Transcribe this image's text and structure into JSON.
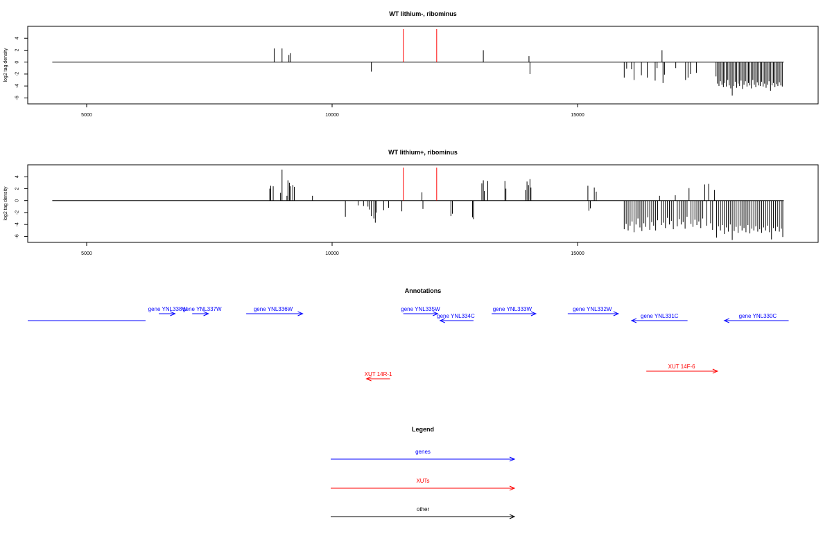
{
  "colors": {
    "gene": "#0000ff",
    "xut": "#ff0000",
    "other": "#000000",
    "density_bar": "#000000",
    "marker": "#ff0000",
    "axis": "#000000"
  },
  "chart_data": [
    {
      "type": "bar",
      "title": "WT lithium-, ribominus",
      "ylabel": "log2 tag density",
      "xlim": [
        3800,
        19900
      ],
      "ylim": [
        -7,
        6
      ],
      "xticks": [
        5000,
        10000,
        15000
      ],
      "yticks": [
        4,
        2,
        0,
        -2,
        -4,
        -6
      ],
      "baseline": {
        "x_start": 4300,
        "x_end": 19200
      },
      "markers": [
        11450,
        12130
      ],
      "bars": [
        {
          "x": 8820,
          "y": 2.3
        },
        {
          "x": 8980,
          "y": 2.3
        },
        {
          "x": 9120,
          "y": 1.2
        },
        {
          "x": 9150,
          "y": 1.5
        },
        {
          "x": 10800,
          "y": -1.6
        },
        {
          "x": 13080,
          "y": 2.0
        },
        {
          "x": 14010,
          "y": 1.0
        },
        {
          "x": 14030,
          "y": -2.0
        },
        {
          "x": 15950,
          "y": -2.6
        },
        {
          "x": 16000,
          "y": -1.1
        },
        {
          "x": 16100,
          "y": -1.2
        },
        {
          "x": 16150,
          "y": -3.0
        },
        {
          "x": 16300,
          "y": -2.2
        },
        {
          "x": 16420,
          "y": -2.6
        },
        {
          "x": 16580,
          "y": -3.1
        },
        {
          "x": 16620,
          "y": -1.0
        },
        {
          "x": 16720,
          "y": 2.0
        },
        {
          "x": 16740,
          "y": -3.5
        },
        {
          "x": 16770,
          "y": -2.1
        },
        {
          "x": 17000,
          "y": -1.0
        },
        {
          "x": 17200,
          "y": -3.0
        },
        {
          "x": 17250,
          "y": -2.6
        },
        {
          "x": 17300,
          "y": -2.0
        },
        {
          "x": 17420,
          "y": -1.8
        },
        {
          "x": 17820,
          "y": -2.4
        },
        {
          "x": 17850,
          "y": -3.6
        },
        {
          "x": 17880,
          "y": -4.0
        },
        {
          "x": 17910,
          "y": -3.2
        },
        {
          "x": 17940,
          "y": -3.8
        },
        {
          "x": 17970,
          "y": -4.2
        },
        {
          "x": 18000,
          "y": -3.5
        },
        {
          "x": 18030,
          "y": -4.1
        },
        {
          "x": 18060,
          "y": -3.0
        },
        {
          "x": 18090,
          "y": -3.9
        },
        {
          "x": 18120,
          "y": -4.4
        },
        {
          "x": 18150,
          "y": -5.6
        },
        {
          "x": 18180,
          "y": -4.0
        },
        {
          "x": 18210,
          "y": -3.3
        },
        {
          "x": 18240,
          "y": -4.3
        },
        {
          "x": 18270,
          "y": -3.6
        },
        {
          "x": 18300,
          "y": -4.0
        },
        {
          "x": 18330,
          "y": -3.1
        },
        {
          "x": 18360,
          "y": -4.5
        },
        {
          "x": 18390,
          "y": -3.8
        },
        {
          "x": 18420,
          "y": -3.2
        },
        {
          "x": 18450,
          "y": -4.1
        },
        {
          "x": 18480,
          "y": -3.5
        },
        {
          "x": 18510,
          "y": -3.9
        },
        {
          "x": 18540,
          "y": -4.4
        },
        {
          "x": 18570,
          "y": -3.0
        },
        {
          "x": 18600,
          "y": -3.8
        },
        {
          "x": 18630,
          "y": -4.2
        },
        {
          "x": 18660,
          "y": -3.4
        },
        {
          "x": 18690,
          "y": -3.9
        },
        {
          "x": 18720,
          "y": -4.0
        },
        {
          "x": 18750,
          "y": -3.3
        },
        {
          "x": 18780,
          "y": -4.1
        },
        {
          "x": 18810,
          "y": -3.6
        },
        {
          "x": 18840,
          "y": -4.3
        },
        {
          "x": 18870,
          "y": -3.8
        },
        {
          "x": 18900,
          "y": -3.2
        },
        {
          "x": 18930,
          "y": -4.8
        },
        {
          "x": 18960,
          "y": -3.9
        },
        {
          "x": 18990,
          "y": -3.5
        },
        {
          "x": 19020,
          "y": -4.2
        },
        {
          "x": 19050,
          "y": -3.7
        },
        {
          "x": 19080,
          "y": -4.0
        },
        {
          "x": 19110,
          "y": -3.4
        },
        {
          "x": 19140,
          "y": -3.9
        },
        {
          "x": 19170,
          "y": -4.1
        }
      ]
    },
    {
      "type": "bar",
      "title": "WT lithium+, ribominus",
      "ylabel": "log2 tag density",
      "xlim": [
        3800,
        19900
      ],
      "ylim": [
        -7,
        6
      ],
      "xticks": [
        5000,
        10000,
        15000
      ],
      "yticks": [
        4,
        2,
        0,
        -2,
        -4,
        -6
      ],
      "baseline": {
        "x_start": 4300,
        "x_end": 19200
      },
      "markers": [
        11450,
        12130
      ],
      "bars": [
        {
          "x": 8730,
          "y": 2.0
        },
        {
          "x": 8750,
          "y": 2.5
        },
        {
          "x": 8800,
          "y": 2.4
        },
        {
          "x": 8950,
          "y": 1.3
        },
        {
          "x": 8980,
          "y": 5.2
        },
        {
          "x": 9080,
          "y": 0.8
        },
        {
          "x": 9100,
          "y": 3.4
        },
        {
          "x": 9130,
          "y": 3.0
        },
        {
          "x": 9150,
          "y": 2.4
        },
        {
          "x": 9200,
          "y": 2.6
        },
        {
          "x": 9230,
          "y": 2.3
        },
        {
          "x": 9600,
          "y": 0.8
        },
        {
          "x": 10270,
          "y": -2.7
        },
        {
          "x": 10530,
          "y": -0.8
        },
        {
          "x": 10640,
          "y": -0.9
        },
        {
          "x": 10730,
          "y": -1.0
        },
        {
          "x": 10760,
          "y": -1.5
        },
        {
          "x": 10800,
          "y": -2.6
        },
        {
          "x": 10850,
          "y": -3.0
        },
        {
          "x": 10880,
          "y": -3.7
        },
        {
          "x": 10900,
          "y": -2.0
        },
        {
          "x": 11050,
          "y": -1.6
        },
        {
          "x": 11150,
          "y": -1.2
        },
        {
          "x": 11420,
          "y": -1.8
        },
        {
          "x": 11830,
          "y": 1.4
        },
        {
          "x": 11850,
          "y": -1.4
        },
        {
          "x": 12420,
          "y": -2.6
        },
        {
          "x": 12450,
          "y": -2.2
        },
        {
          "x": 12860,
          "y": -2.8
        },
        {
          "x": 12880,
          "y": -3.1
        },
        {
          "x": 13050,
          "y": 2.9
        },
        {
          "x": 13080,
          "y": 3.4
        },
        {
          "x": 13100,
          "y": 1.6
        },
        {
          "x": 13170,
          "y": 3.3
        },
        {
          "x": 13520,
          "y": 3.3
        },
        {
          "x": 13540,
          "y": 2.0
        },
        {
          "x": 13940,
          "y": 1.8
        },
        {
          "x": 13970,
          "y": 3.2
        },
        {
          "x": 14000,
          "y": 2.6
        },
        {
          "x": 14030,
          "y": 3.6
        },
        {
          "x": 14050,
          "y": 2.2
        },
        {
          "x": 15210,
          "y": 2.5
        },
        {
          "x": 15230,
          "y": -1.7
        },
        {
          "x": 15260,
          "y": -1.3
        },
        {
          "x": 15340,
          "y": 2.2
        },
        {
          "x": 15380,
          "y": 1.5
        },
        {
          "x": 15950,
          "y": -4.8
        },
        {
          "x": 15990,
          "y": -3.9
        },
        {
          "x": 16030,
          "y": -5.0
        },
        {
          "x": 16070,
          "y": -4.2
        },
        {
          "x": 16110,
          "y": -3.5
        },
        {
          "x": 16150,
          "y": -5.3
        },
        {
          "x": 16190,
          "y": -4.0
        },
        {
          "x": 16230,
          "y": -3.0
        },
        {
          "x": 16270,
          "y": -4.5
        },
        {
          "x": 16310,
          "y": -5.1
        },
        {
          "x": 16350,
          "y": -3.8
        },
        {
          "x": 16390,
          "y": -4.4
        },
        {
          "x": 16430,
          "y": -2.8
        },
        {
          "x": 16470,
          "y": -4.9
        },
        {
          "x": 16510,
          "y": -3.6
        },
        {
          "x": 16550,
          "y": -4.2
        },
        {
          "x": 16590,
          "y": -5.0
        },
        {
          "x": 16630,
          "y": -3.3
        },
        {
          "x": 16670,
          "y": 0.8
        },
        {
          "x": 16710,
          "y": -4.1
        },
        {
          "x": 16750,
          "y": -3.7
        },
        {
          "x": 16790,
          "y": -4.6
        },
        {
          "x": 16830,
          "y": -2.9
        },
        {
          "x": 16870,
          "y": -4.0
        },
        {
          "x": 16910,
          "y": -3.4
        },
        {
          "x": 16950,
          "y": -4.8
        },
        {
          "x": 16990,
          "y": 0.9
        },
        {
          "x": 17030,
          "y": -4.3
        },
        {
          "x": 17070,
          "y": -3.1
        },
        {
          "x": 17110,
          "y": -4.0
        },
        {
          "x": 17150,
          "y": -3.6
        },
        {
          "x": 17190,
          "y": -4.7
        },
        {
          "x": 17230,
          "y": -2.7
        },
        {
          "x": 17270,
          "y": 2.1
        },
        {
          "x": 17310,
          "y": -3.9
        },
        {
          "x": 17350,
          "y": -4.4
        },
        {
          "x": 17390,
          "y": -3.2
        },
        {
          "x": 17430,
          "y": -4.1
        },
        {
          "x": 17470,
          "y": -3.5
        },
        {
          "x": 17510,
          "y": -4.6
        },
        {
          "x": 17550,
          "y": -3.0
        },
        {
          "x": 17590,
          "y": 2.7
        },
        {
          "x": 17630,
          "y": -4.2
        },
        {
          "x": 17670,
          "y": 2.8
        },
        {
          "x": 17710,
          "y": -3.8
        },
        {
          "x": 17750,
          "y": -4.9
        },
        {
          "x": 17790,
          "y": 1.8
        },
        {
          "x": 17830,
          "y": -6.2
        },
        {
          "x": 17870,
          "y": -4.3
        },
        {
          "x": 17910,
          "y": -5.0
        },
        {
          "x": 17950,
          "y": -4.1
        },
        {
          "x": 17990,
          "y": -5.6
        },
        {
          "x": 18030,
          "y": -4.5
        },
        {
          "x": 18070,
          "y": -5.2
        },
        {
          "x": 18110,
          "y": -4.0
        },
        {
          "x": 18150,
          "y": -6.6
        },
        {
          "x": 18190,
          "y": -5.1
        },
        {
          "x": 18230,
          "y": -4.4
        },
        {
          "x": 18270,
          "y": -5.4
        },
        {
          "x": 18310,
          "y": -4.2
        },
        {
          "x": 18350,
          "y": -5.0
        },
        {
          "x": 18390,
          "y": -4.6
        },
        {
          "x": 18430,
          "y": -5.3
        },
        {
          "x": 18470,
          "y": -4.1
        },
        {
          "x": 18510,
          "y": -5.5
        },
        {
          "x": 18550,
          "y": -4.7
        },
        {
          "x": 18590,
          "y": -5.0
        },
        {
          "x": 18630,
          "y": -4.3
        },
        {
          "x": 18670,
          "y": -5.2
        },
        {
          "x": 18710,
          "y": -4.8
        },
        {
          "x": 18750,
          "y": -5.4
        },
        {
          "x": 18790,
          "y": -4.5
        },
        {
          "x": 18830,
          "y": -5.0
        },
        {
          "x": 18870,
          "y": -4.2
        },
        {
          "x": 18910,
          "y": -5.3
        },
        {
          "x": 18950,
          "y": -6.5
        },
        {
          "x": 18990,
          "y": -4.6
        },
        {
          "x": 19030,
          "y": -5.1
        },
        {
          "x": 19070,
          "y": -4.4
        },
        {
          "x": 19110,
          "y": -5.2
        },
        {
          "x": 19150,
          "y": -4.7
        },
        {
          "x": 19180,
          "y": -6.1
        }
      ]
    }
  ],
  "annotations": {
    "title": "Annotations",
    "genes": [
      {
        "label": "",
        "start": 3800,
        "end": 6200,
        "strand": "none",
        "row": 2,
        "label_x": 5000
      },
      {
        "label": "gene YNL338W",
        "start": 6470,
        "end": 6800,
        "strand": "+",
        "row": 1,
        "label_x": 6650
      },
      {
        "label": "gene YNL337W",
        "start": 7150,
        "end": 7480,
        "strand": "+",
        "row": 1,
        "label_x": 7350
      },
      {
        "label": "gene YNL336W",
        "start": 8250,
        "end": 9400,
        "strand": "+",
        "row": 1,
        "label_x": 8800
      },
      {
        "label": "gene YNL335W",
        "start": 11450,
        "end": 12150,
        "strand": "+",
        "row": 1,
        "label_x": 11800
      },
      {
        "label": "gene YNL334C",
        "start": 12200,
        "end": 12880,
        "strand": "-",
        "row": 2,
        "label_x": 12520
      },
      {
        "label": "gene YNL333W",
        "start": 13250,
        "end": 14150,
        "strand": "+",
        "row": 1,
        "label_x": 13670
      },
      {
        "label": "gene YNL332W",
        "start": 14800,
        "end": 15830,
        "strand": "+",
        "row": 1,
        "label_x": 15300
      },
      {
        "label": "gene YNL331C",
        "start": 16100,
        "end": 17240,
        "strand": "-",
        "row": 2,
        "label_x": 16670
      },
      {
        "label": "gene YNL330C",
        "start": 17990,
        "end": 19300,
        "strand": "-",
        "row": 2,
        "label_x": 18670
      }
    ],
    "xuts": [
      {
        "label": "XUT 14R-1",
        "start": 10700,
        "end": 11180,
        "strand": "-",
        "row": 3,
        "label_x": 10940
      },
      {
        "label": "XUT 14F-6",
        "start": 16400,
        "end": 17850,
        "strand": "+",
        "row": 4,
        "label_x": 17120
      }
    ]
  },
  "legend": {
    "title": "Legend",
    "items": [
      {
        "label": "genes",
        "kind": "gene"
      },
      {
        "label": "XUTs",
        "kind": "xut"
      },
      {
        "label": "other",
        "kind": "other"
      }
    ]
  }
}
